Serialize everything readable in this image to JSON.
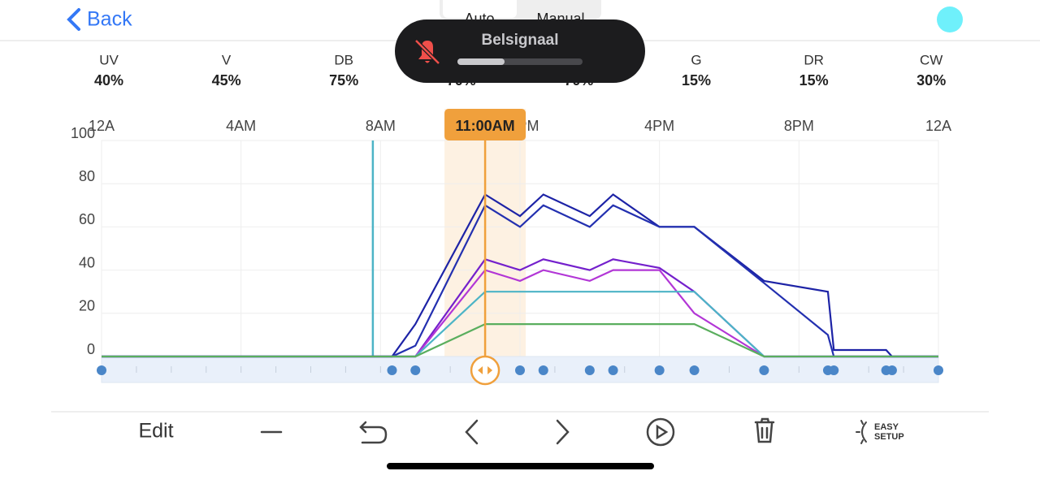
{
  "header": {
    "back": "Back",
    "tabs": [
      "Auto",
      "Manual"
    ]
  },
  "toast": {
    "title": "Belsignaal"
  },
  "channels": [
    {
      "name": "UV",
      "value": "40%"
    },
    {
      "name": "V",
      "value": "45%"
    },
    {
      "name": "DB",
      "value": "75%"
    },
    {
      "value": "70%"
    },
    {
      "value": "70%"
    },
    {
      "name": "G",
      "value": "15%"
    },
    {
      "name": "DR",
      "value": "15%"
    },
    {
      "name": "CW",
      "value": "30%"
    }
  ],
  "chart_data": {
    "type": "line",
    "x": [
      0,
      8.33,
      9,
      11,
      12,
      12.67,
      14,
      14.67,
      16,
      17,
      19,
      20.83,
      21,
      22.5,
      22.67,
      24
    ],
    "series": [
      {
        "color": "#1d23a6",
        "values": [
          0,
          0,
          15,
          75,
          65,
          75,
          65,
          75,
          60,
          60,
          35,
          30,
          3,
          3,
          0,
          0
        ]
      },
      {
        "color": "#2330b0",
        "values": [
          0,
          0,
          5,
          70,
          60,
          70,
          60,
          70,
          60,
          60,
          34,
          10,
          0,
          0,
          0,
          0
        ]
      },
      {
        "color": "#7420cc",
        "values": [
          0,
          0,
          0,
          45,
          40,
          45,
          40,
          45,
          41,
          30,
          0,
          0,
          0,
          0,
          0,
          0
        ]
      },
      {
        "color": "#b236d6",
        "values": [
          0,
          0,
          0,
          40,
          35,
          40,
          35,
          40,
          40,
          20,
          0,
          0,
          0,
          0,
          0,
          0
        ]
      },
      {
        "color": "#4cb4c6",
        "values": [
          0,
          0,
          0,
          30,
          30,
          30,
          30,
          30,
          30,
          30,
          0,
          0,
          0,
          0,
          0,
          0
        ]
      },
      {
        "color": "#5aae5e",
        "values": [
          0,
          0,
          0,
          15,
          15,
          15,
          15,
          15,
          15,
          15,
          0,
          0,
          0,
          0,
          0,
          0
        ]
      }
    ],
    "xlim": [
      0,
      24
    ],
    "ylim": [
      0,
      100
    ],
    "xticks": [
      {
        "value": 0,
        "label": "12A"
      },
      {
        "value": 4,
        "label": "4AM"
      },
      {
        "value": 8,
        "label": "8AM"
      },
      {
        "value": 12,
        "label": "12PM"
      },
      {
        "value": 16,
        "label": "4PM"
      },
      {
        "value": 20,
        "label": "8PM"
      },
      {
        "value": 24,
        "label": "12A"
      }
    ],
    "yticks": [
      0,
      20,
      40,
      60,
      80,
      100
    ],
    "grid": true,
    "now_x": 7.78,
    "cursor": {
      "x": 11,
      "label": "11:00AM"
    }
  },
  "toolbar": {
    "edit": "Edit",
    "easy_setup": [
      "EASY",
      "SETUP"
    ]
  }
}
